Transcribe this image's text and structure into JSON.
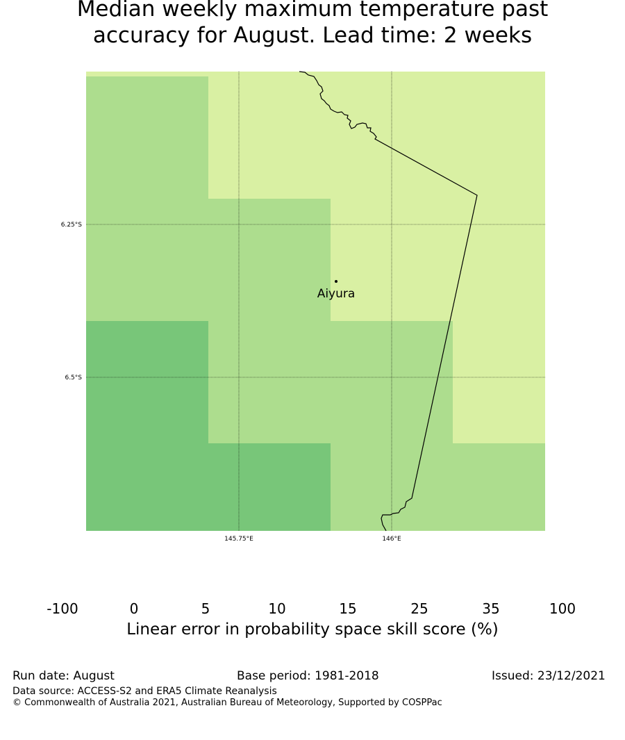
{
  "title": {
    "line1": "Median weekly maximum temperature past",
    "line2": "accuracy for August. Lead time: 2 weeks"
  },
  "map": {
    "lon_ticks": [
      "145.75°E",
      "146°E"
    ],
    "lat_ticks": [
      "6.25°S",
      "6.5°S"
    ],
    "place": {
      "name": "Aiyura",
      "lon": 145.91,
      "lat": -6.343
    }
  },
  "legend": {
    "ticks": [
      "-100",
      "0",
      "5",
      "10",
      "15",
      "25",
      "35",
      "100"
    ],
    "colors": [
      "#ffffff",
      "#ffffcc",
      "#d9f0a3",
      "#addd8e",
      "#78c679",
      "#41ab5d",
      "#238443"
    ],
    "caption": "Linear error in probability space skill score (%)"
  },
  "chart_data": {
    "type": "heatmap",
    "title": "Median weekly maximum temperature past accuracy for August. Lead time: 2 weeks",
    "xlabel": "",
    "ylabel": "",
    "x_ticks": [
      "145.75°E",
      "146°E"
    ],
    "y_ticks": [
      "6.25°S",
      "6.5°S"
    ],
    "bins": [
      "-100",
      "0",
      "5",
      "10",
      "15",
      "25",
      "35",
      "100"
    ],
    "grid": true,
    "legend_position": "bottom",
    "cells": [
      {
        "lon_range": [
          145.5,
          145.7
        ],
        "lat_range": [
          -6.0,
          -6.4
        ],
        "value_bin": "10-15"
      },
      {
        "lon_range": [
          145.7,
          145.9
        ],
        "lat_range": [
          -6.0,
          -6.2
        ],
        "value_bin": "5-10"
      },
      {
        "lon_range": [
          145.9,
          146.25
        ],
        "lat_range": [
          -6.0,
          -6.4
        ],
        "value_bin": "5-10"
      },
      {
        "lon_range": [
          145.7,
          145.9
        ],
        "lat_range": [
          -6.2,
          -6.6
        ],
        "value_bin": "10-15"
      },
      {
        "lon_range": [
          145.5,
          145.7
        ],
        "lat_range": [
          -6.4,
          -6.75
        ],
        "value_bin": "15-25"
      },
      {
        "lon_range": [
          145.9,
          146.1
        ],
        "lat_range": [
          -6.4,
          -6.75
        ],
        "value_bin": "10-15"
      },
      {
        "lon_range": [
          146.1,
          146.25
        ],
        "lat_range": [
          -6.4,
          -6.6
        ],
        "value_bin": "5-10"
      },
      {
        "lon_range": [
          145.7,
          145.9
        ],
        "lat_range": [
          -6.6,
          -6.75
        ],
        "value_bin": "15-25"
      },
      {
        "lon_range": [
          146.1,
          146.25
        ],
        "lat_range": [
          -6.6,
          -6.75
        ],
        "value_bin": "10-15"
      }
    ]
  },
  "footer": {
    "run_date": "Run date: August",
    "base_period": "Base period: 1981-2018",
    "issued": "Issued: 23/12/2021",
    "data_source": "Data source: ACCESS-S2 and ERA5 Climate Reanalysis",
    "copyright": "© Commonwealth of Australia 2021, Australian Bureau of Meteorology, Supported by COSPPac"
  }
}
